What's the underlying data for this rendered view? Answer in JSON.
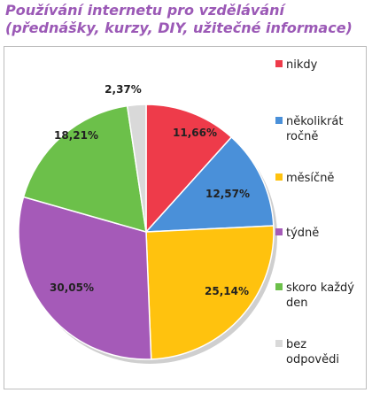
{
  "title_line1": "Používání internetu pro vzdělávání",
  "title_line2": "(přednášky, kurzy, DIY, užitečné informace)",
  "chart_data": {
    "type": "pie",
    "title": "Používání internetu pro vzdělávání (přednášky, kurzy, DIY, užitečné informace)",
    "legend_position": "right",
    "slices": [
      {
        "label": "nikdy",
        "value": 11.66,
        "display": "11,66%",
        "color": "#ee3b4a"
      },
      {
        "label": "několikrát ročně",
        "value": 12.57,
        "display": "12,57%",
        "color": "#4a90d9"
      },
      {
        "label": "měsíčně",
        "value": 25.14,
        "display": "25,14%",
        "color": "#ffc20e"
      },
      {
        "label": "týdně",
        "value": 30.05,
        "display": "30,05%",
        "color": "#a55ab8"
      },
      {
        "label": "skoro každý den",
        "value": 18.21,
        "display": "18,21%",
        "color": "#6cc04a"
      },
      {
        "label": "bez odpovědi",
        "value": 2.37,
        "display": "2,37%",
        "color": "#d9d9d9"
      }
    ]
  }
}
